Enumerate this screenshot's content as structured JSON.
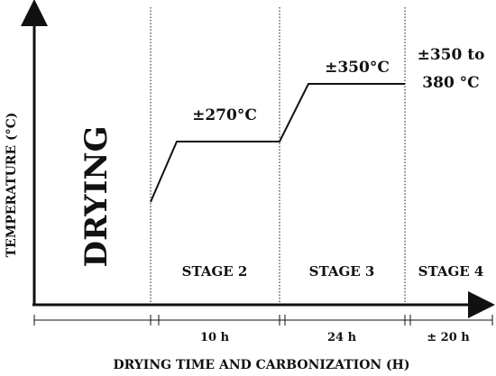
{
  "y_axis_label": "TEMPERATURE (°C)",
  "x_axis_label": "DRYING TIME AND CARBONIZATION (H)",
  "drying_label": "DRYING",
  "stages": [
    {
      "name": "STAGE 2",
      "temperature": "±270°C",
      "duration": "10 h"
    },
    {
      "name": "STAGE 3",
      "temperature": "±350°C",
      "duration": "24 h"
    },
    {
      "name": "STAGE 4",
      "temperature_line1": "±350 to",
      "temperature_line2": "380 °C",
      "duration": "± 20 h"
    }
  ]
}
